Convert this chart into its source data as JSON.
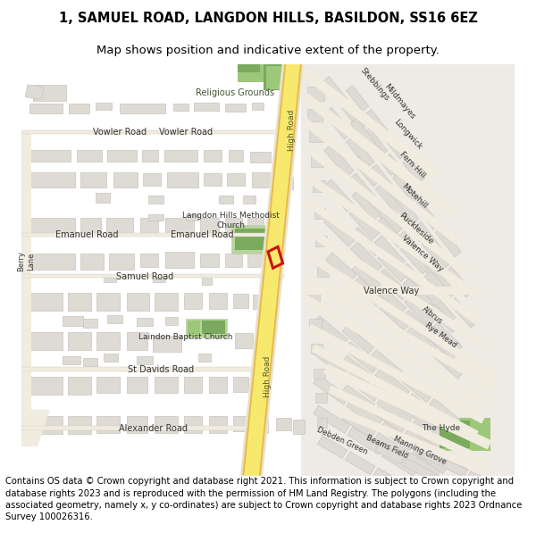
{
  "title_line1": "1, SAMUEL ROAD, LANGDON HILLS, BASILDON, SS16 6EZ",
  "title_line2": "Map shows position and indicative extent of the property.",
  "footer_text": "Contains OS data © Crown copyright and database right 2021. This information is subject to Crown copyright and database rights 2023 and is reproduced with the permission of HM Land Registry. The polygons (including the associated geometry, namely x, y co-ordinates) are subject to Crown copyright and database rights 2023 Ordnance Survey 100026316.",
  "title_fontsize": 10.5,
  "subtitle_fontsize": 9.5,
  "footer_fontsize": 7.2,
  "bg_color": "#ffffff",
  "map_bg": "#f5f3f0",
  "road_yellow": "#f7e96e",
  "road_orange": "#e8b84a",
  "building_fill": "#dedad4",
  "building_edge": "#c8c4bc",
  "green_light": "#b8d49a",
  "green_dark": "#7aaa5e",
  "green_medium": "#9dc87a",
  "road_line": "#d4c84a",
  "road_white": "#f0ece0",
  "red_color": "#cc1111",
  "text_dark": "#333333",
  "text_road": "#444444"
}
